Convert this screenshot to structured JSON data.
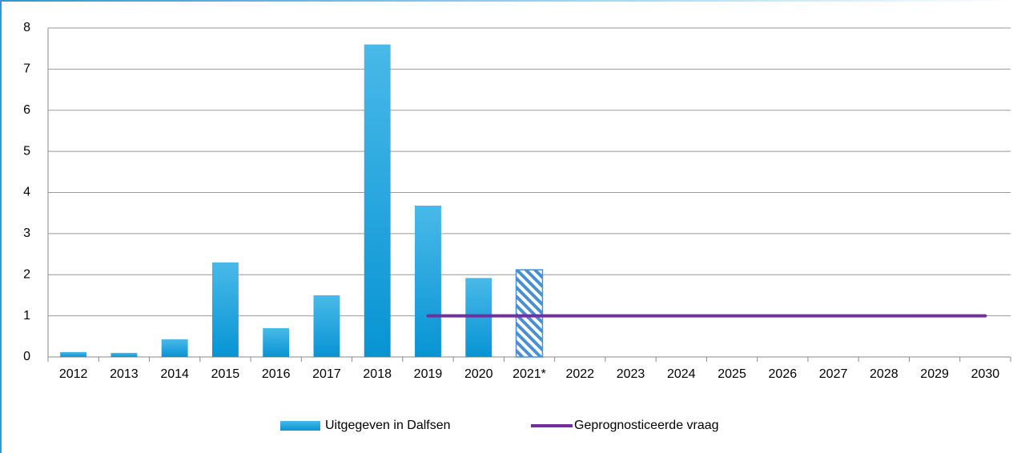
{
  "chart_data": {
    "type": "bar",
    "categories": [
      "2012",
      "2013",
      "2014",
      "2015",
      "2016",
      "2017",
      "2018",
      "2019",
      "2020",
      "2021*",
      "2022",
      "2023",
      "2024",
      "2025",
      "2026",
      "2027",
      "2028",
      "2029",
      "2030"
    ],
    "series": [
      {
        "name": "Uitgegeven in Dalfsen",
        "type": "bar",
        "color": "#0a9ad8",
        "values": [
          0.12,
          0.1,
          0.43,
          2.3,
          0.7,
          1.5,
          7.6,
          3.68,
          1.92,
          2.12,
          null,
          null,
          null,
          null,
          null,
          null,
          null,
          null,
          null
        ],
        "hatched": [
          false,
          false,
          false,
          false,
          false,
          false,
          false,
          false,
          false,
          true,
          false,
          false,
          false,
          false,
          false,
          false,
          false,
          false,
          false
        ]
      },
      {
        "name": "Geprognosticeerde vraag",
        "type": "line",
        "color": "#7030a0",
        "values": [
          null,
          null,
          null,
          null,
          null,
          null,
          null,
          1,
          1,
          1,
          1,
          1,
          1,
          1,
          1,
          1,
          1,
          1,
          1
        ]
      }
    ],
    "ylim": [
      0,
      8
    ],
    "yticks": [
      0,
      1,
      2,
      3,
      4,
      5,
      6,
      7,
      8
    ],
    "grid": true,
    "legend": "bottom"
  }
}
